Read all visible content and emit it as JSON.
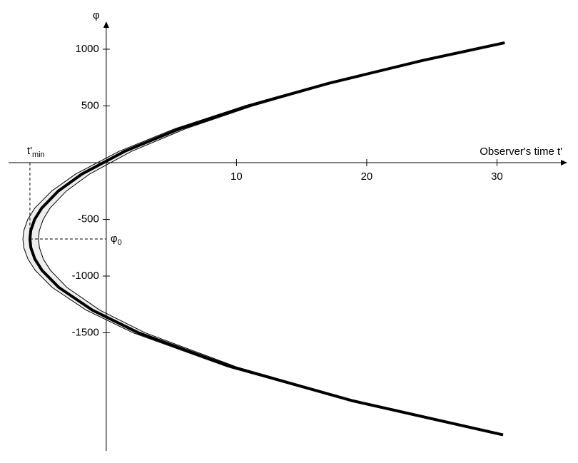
{
  "chart_data": {
    "type": "line",
    "x_label": "Observer's time t'",
    "y_label": "φ",
    "annotations": {
      "t_min": {
        "base": "t'",
        "sub": "min"
      },
      "phi_0": {
        "base": "φ",
        "sub": "0"
      }
    },
    "xlim": [
      -7.5,
      35.4
    ],
    "ylim": [
      -2541,
      1245
    ],
    "xticks": [
      10,
      20,
      30
    ],
    "yticks": [
      1000,
      500,
      -500,
      -1000,
      -1500
    ],
    "band_color": "#eeeeee",
    "vertex_index": 9,
    "series": [
      {
        "role": "center",
        "color": "#000000",
        "x": [
          30.47,
          18.94,
          9.61,
          2.47,
          -1.07,
          -3.64,
          -4.93,
          -5.48,
          -5.79,
          -5.86,
          -5.8,
          -5.5,
          -4.95,
          -3.68,
          -1.86,
          1.42,
          5.67,
          10.9,
          17.1,
          24.28,
          30.59
        ],
        "values": [
          -2400,
          -2100,
          -1800,
          -1500,
          -1300,
          -1100,
          -950,
          -850,
          -750,
          -673,
          -600,
          -500,
          -400,
          -250,
          -100,
          100,
          300,
          500,
          700,
          900,
          1057
        ]
      },
      {
        "role": "outer",
        "color": "#000000",
        "x": [
          30.46,
          18.77,
          9.3,
          2.05,
          -1.54,
          -4.15,
          -5.45,
          -6.01,
          -6.33,
          -6.4,
          -6.33,
          -6.03,
          -5.48,
          -4.19,
          -2.34,
          0.99,
          5.3,
          10.61,
          16.9,
          24.18,
          30.59
        ],
        "values": [
          -2400,
          -2100,
          -1800,
          -1500,
          -1300,
          -1100,
          -950,
          -850,
          -750,
          -673,
          -600,
          -500,
          -400,
          -250,
          -100,
          100,
          300,
          500,
          700,
          900,
          1057
        ]
      },
      {
        "role": "inner",
        "color": "#000000",
        "x": [
          30.47,
          19.15,
          9.99,
          2.98,
          -0.5,
          -3.02,
          -4.28,
          -4.83,
          -5.13,
          -5.2,
          -5.14,
          -4.84,
          -4.31,
          -3.06,
          -1.27,
          1.95,
          6.12,
          11.26,
          17.35,
          24.39,
          30.6
        ],
        "values": [
          -2400,
          -2100,
          -1800,
          -1500,
          -1300,
          -1100,
          -950,
          -850,
          -750,
          -673,
          -600,
          -500,
          -400,
          -250,
          -100,
          100,
          300,
          500,
          700,
          900,
          1057
        ]
      }
    ]
  }
}
